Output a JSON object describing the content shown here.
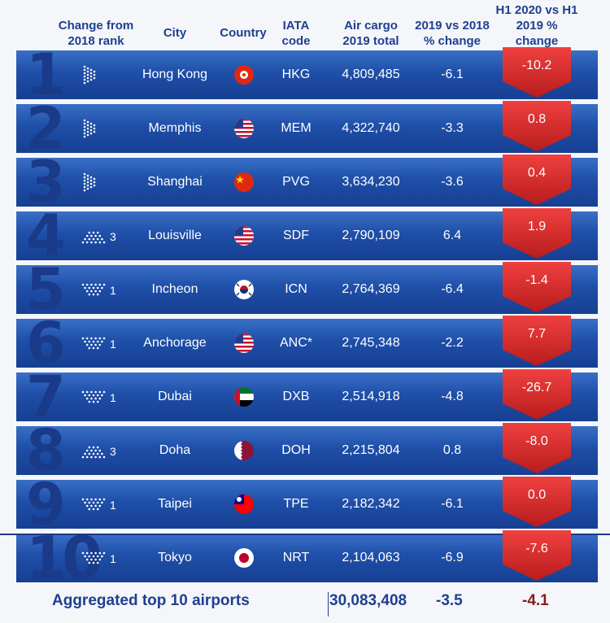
{
  "headers": {
    "change": "Change from 2018 rank",
    "city": "City",
    "country": "Country",
    "iata": "IATA code",
    "cargo": "Air cargo 2019 total",
    "pct": "2019 vs 2018 % change",
    "h1": "H1 2020 vs H1 2019 % change"
  },
  "rows": [
    {
      "rank": "1",
      "change_dir": "same",
      "change_n": "",
      "city": "Hong Kong",
      "flag": "hk",
      "iata": "HKG",
      "cargo": "4,809,485",
      "pct": "-6.1",
      "h1": "-10.2"
    },
    {
      "rank": "2",
      "change_dir": "same",
      "change_n": "",
      "city": "Memphis",
      "flag": "us",
      "iata": "MEM",
      "cargo": "4,322,740",
      "pct": "-3.3",
      "h1": "0.8"
    },
    {
      "rank": "3",
      "change_dir": "same",
      "change_n": "",
      "city": "Shanghai",
      "flag": "cn",
      "iata": "PVG",
      "cargo": "3,634,230",
      "pct": "-3.6",
      "h1": "0.4"
    },
    {
      "rank": "4",
      "change_dir": "up",
      "change_n": "3",
      "city": "Louisville",
      "flag": "us",
      "iata": "SDF",
      "cargo": "2,790,109",
      "pct": "6.4",
      "h1": "1.9"
    },
    {
      "rank": "5",
      "change_dir": "down",
      "change_n": "1",
      "city": "Incheon",
      "flag": "kr",
      "iata": "ICN",
      "cargo": "2,764,369",
      "pct": "-6.4",
      "h1": "-1.4"
    },
    {
      "rank": "6",
      "change_dir": "down",
      "change_n": "1",
      "city": "Anchorage",
      "flag": "us",
      "iata": "ANC*",
      "cargo": "2,745,348",
      "pct": "-2.2",
      "h1": "7.7"
    },
    {
      "rank": "7",
      "change_dir": "down",
      "change_n": "1",
      "city": "Dubai",
      "flag": "ae",
      "iata": "DXB",
      "cargo": "2,514,918",
      "pct": "-4.8",
      "h1": "-26.7"
    },
    {
      "rank": "8",
      "change_dir": "up",
      "change_n": "3",
      "city": "Doha",
      "flag": "qa",
      "iata": "DOH",
      "cargo": "2,215,804",
      "pct": "0.8",
      "h1": "-8.0"
    },
    {
      "rank": "9",
      "change_dir": "down",
      "change_n": "1",
      "city": "Taipei",
      "flag": "tw",
      "iata": "TPE",
      "cargo": "2,182,342",
      "pct": "-6.1",
      "h1": "0.0"
    },
    {
      "rank": "10",
      "change_dir": "down",
      "change_n": "1",
      "city": "Tokyo",
      "flag": "jp",
      "iata": "NRT",
      "cargo": "2,104,063",
      "pct": "-6.9",
      "h1": "-7.6"
    }
  ],
  "footer": {
    "label": "Aggregated top 10 airports",
    "total": "30,083,408",
    "pct": "-3.5",
    "h1": "-4.1"
  },
  "colors": {
    "band": "#1f4fa8",
    "accent": "#1f3f8f",
    "red": "#d62a2a",
    "footer_red": "#8a1a1a"
  }
}
